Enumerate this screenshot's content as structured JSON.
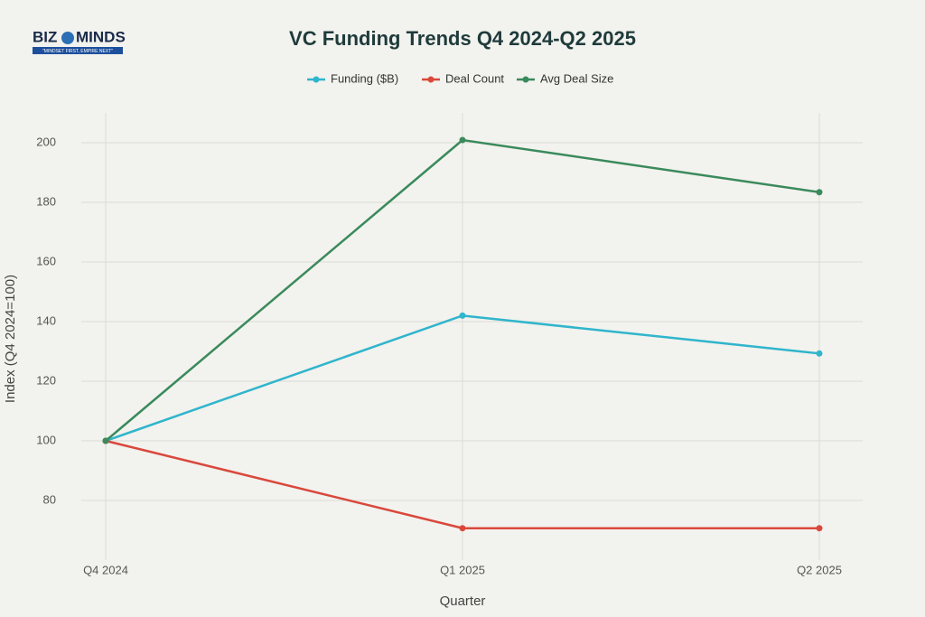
{
  "logo": {
    "left": "BIZ",
    "right": "MINDS",
    "tagline": "\"MINDSET FIRST, EMPIRE NEXT\""
  },
  "chart_data": {
    "type": "line",
    "title": "VC Funding Trends Q4 2024-Q2 2025",
    "x_label": "Quarter",
    "y_label": "Index (Q4 2024=100)",
    "categories": [
      "Q4 2024",
      "Q1 2025",
      "Q2 2025"
    ],
    "series": [
      {
        "name": "Funding ($B)",
        "color": "#2fb5cc",
        "values": [
          100,
          142,
          129.3
        ]
      },
      {
        "name": "Deal Count",
        "color": "#d9483b",
        "values": [
          100,
          70.7,
          70.7
        ]
      },
      {
        "name": "Avg Deal Size",
        "color": "#3a8a5c",
        "values": [
          100,
          200.9,
          183.4
        ]
      }
    ],
    "ylim": [
      60,
      210
    ],
    "yticks": [
      80,
      100,
      120,
      140,
      160,
      180,
      200
    ],
    "grid": true,
    "legend": "top"
  }
}
